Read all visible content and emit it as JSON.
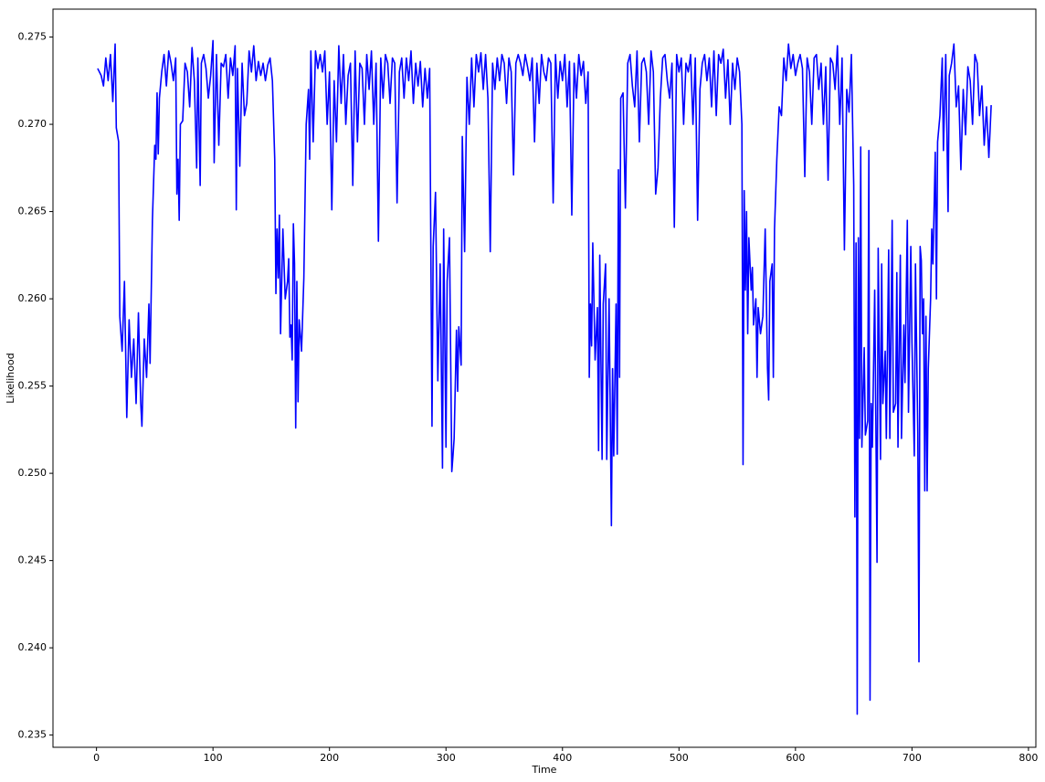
{
  "chart_data": {
    "type": "line",
    "x_label": "Time",
    "y_label": "Likelihood",
    "color": "#0000ff",
    "xlim": [
      -37.35,
      806.35
    ],
    "xticks": [
      0,
      100,
      200,
      300,
      400,
      500,
      600,
      700,
      800
    ],
    "ylim": [
      0.2343,
      0.2766
    ],
    "yticks": [
      0.235,
      {
        "value": 0.24,
        "label": "0.240"
      },
      0.245,
      {
        "value": 0.25,
        "label": "0.250"
      },
      0.255,
      {
        "value": 0.26,
        "label": "0.260"
      },
      0.265,
      {
        "value": 0.27,
        "label": "0.270"
      },
      0.275
    ],
    "x": [
      1,
      4,
      6,
      8,
      10,
      12,
      14,
      16,
      17,
      19,
      20,
      22,
      24,
      26,
      28,
      30,
      32,
      34,
      36,
      38,
      39,
      41,
      43,
      45,
      46,
      48,
      50,
      51,
      52,
      53,
      54,
      56,
      58,
      60,
      62,
      64,
      66,
      68,
      69,
      70,
      71,
      72,
      74,
      76,
      78,
      80,
      82,
      84,
      86,
      87,
      89,
      90,
      92,
      94,
      96,
      98,
      100,
      101,
      103,
      105,
      107,
      109,
      111,
      113,
      115,
      117,
      119,
      120,
      121,
      123,
      125,
      127,
      129,
      131,
      133,
      135,
      137,
      139,
      141,
      143,
      145,
      147,
      149,
      151,
      153,
      154,
      155,
      156,
      157,
      158,
      160,
      162,
      164,
      165,
      166,
      167,
      168,
      169,
      170,
      171,
      172,
      173,
      174,
      176,
      178,
      180,
      182,
      183,
      184,
      186,
      188,
      190,
      192,
      194,
      196,
      198,
      200,
      202,
      204,
      206,
      208,
      210,
      212,
      214,
      216,
      218,
      220,
      222,
      224,
      226,
      228,
      230,
      232,
      234,
      236,
      238,
      240,
      242,
      244,
      246,
      248,
      250,
      252,
      254,
      256,
      258,
      260,
      262,
      264,
      266,
      268,
      270,
      272,
      274,
      276,
      278,
      280,
      282,
      284,
      286,
      288,
      289,
      291,
      293,
      295,
      297,
      298,
      300,
      301,
      303,
      305,
      306,
      307,
      309,
      310,
      311,
      313,
      314,
      316,
      318,
      320,
      322,
      324,
      326,
      328,
      330,
      332,
      334,
      336,
      338,
      340,
      342,
      344,
      346,
      348,
      350,
      352,
      354,
      356,
      358,
      360,
      362,
      364,
      366,
      368,
      370,
      372,
      374,
      376,
      378,
      380,
      382,
      384,
      386,
      388,
      390,
      392,
      394,
      396,
      398,
      400,
      402,
      404,
      406,
      408,
      410,
      412,
      414,
      416,
      418,
      420,
      422,
      423,
      424,
      425,
      426,
      428,
      430,
      431,
      432,
      434,
      435,
      437,
      438,
      440,
      442,
      443,
      444,
      446,
      447,
      448,
      449,
      450,
      452,
      454,
      456,
      458,
      460,
      462,
      464,
      466,
      468,
      470,
      472,
      474,
      476,
      478,
      480,
      482,
      484,
      486,
      488,
      490,
      492,
      494,
      496,
      498,
      500,
      502,
      504,
      506,
      508,
      510,
      512,
      514,
      516,
      518,
      520,
      522,
      524,
      526,
      528,
      530,
      532,
      534,
      536,
      538,
      540,
      542,
      544,
      546,
      548,
      550,
      552,
      554,
      555,
      556,
      557,
      558,
      559,
      560,
      562,
      563,
      564,
      566,
      567,
      568,
      570,
      572,
      574,
      576,
      577,
      578,
      580,
      581,
      582,
      584,
      586,
      588,
      590,
      592,
      594,
      596,
      598,
      600,
      602,
      604,
      606,
      608,
      610,
      612,
      614,
      616,
      618,
      620,
      622,
      624,
      626,
      628,
      630,
      632,
      634,
      636,
      638,
      640,
      642,
      644,
      646,
      648,
      650,
      651,
      652,
      653,
      654,
      655,
      656,
      657,
      659,
      660,
      662,
      663,
      664,
      665,
      666,
      668,
      669,
      670,
      671,
      673,
      674,
      675,
      677,
      678,
      680,
      681,
      683,
      684,
      686,
      687,
      688,
      690,
      691,
      693,
      694,
      696,
      697,
      699,
      700,
      702,
      703,
      705,
      706,
      707,
      708,
      709,
      710,
      711,
      712,
      713,
      714,
      716,
      717,
      718,
      720,
      721,
      722,
      724,
      726,
      727,
      729,
      731,
      732,
      734,
      736,
      738,
      740,
      742,
      744,
      746,
      748,
      750,
      752,
      754,
      756,
      758,
      760,
      762,
      764,
      766,
      768
    ],
    "values": [
      0.2732,
      0.2728,
      0.2722,
      0.2738,
      0.2725,
      0.274,
      0.2713,
      0.2746,
      0.2698,
      0.269,
      0.259,
      0.257,
      0.261,
      0.2532,
      0.2588,
      0.2555,
      0.2577,
      0.254,
      0.2592,
      0.254,
      0.2527,
      0.2577,
      0.2555,
      0.2597,
      0.2563,
      0.2645,
      0.2688,
      0.268,
      0.2718,
      0.2683,
      0.2715,
      0.273,
      0.274,
      0.2722,
      0.2742,
      0.2735,
      0.2725,
      0.2738,
      0.266,
      0.268,
      0.2645,
      0.27,
      0.2702,
      0.2735,
      0.273,
      0.271,
      0.2744,
      0.2725,
      0.2675,
      0.2738,
      0.2665,
      0.2735,
      0.274,
      0.2732,
      0.2715,
      0.2728,
      0.2748,
      0.2678,
      0.274,
      0.2688,
      0.2735,
      0.2733,
      0.274,
      0.2715,
      0.2738,
      0.2728,
      0.2745,
      0.2651,
      0.2732,
      0.2676,
      0.2735,
      0.2705,
      0.2712,
      0.2742,
      0.273,
      0.2745,
      0.2725,
      0.2736,
      0.2728,
      0.2735,
      0.2725,
      0.2734,
      0.2738,
      0.2725,
      0.268,
      0.2603,
      0.264,
      0.2612,
      0.2648,
      0.258,
      0.264,
      0.26,
      0.261,
      0.2623,
      0.2578,
      0.2585,
      0.2565,
      0.2643,
      0.262,
      0.2526,
      0.261,
      0.2541,
      0.2588,
      0.257,
      0.2612,
      0.27,
      0.272,
      0.268,
      0.2742,
      0.269,
      0.2742,
      0.2732,
      0.274,
      0.273,
      0.2742,
      0.27,
      0.273,
      0.2651,
      0.2725,
      0.269,
      0.2745,
      0.2712,
      0.274,
      0.27,
      0.2728,
      0.2735,
      0.2665,
      0.2742,
      0.269,
      0.2735,
      0.2732,
      0.27,
      0.274,
      0.272,
      0.2742,
      0.27,
      0.2735,
      0.2633,
      0.2738,
      0.2715,
      0.274,
      0.2735,
      0.2712,
      0.2738,
      0.2735,
      0.2655,
      0.273,
      0.2738,
      0.2715,
      0.2738,
      0.2725,
      0.2742,
      0.2712,
      0.2735,
      0.2722,
      0.2736,
      0.271,
      0.2732,
      0.2715,
      0.2732,
      0.2527,
      0.263,
      0.2661,
      0.2553,
      0.262,
      0.2503,
      0.264,
      0.2515,
      0.261,
      0.2635,
      0.2501,
      0.251,
      0.252,
      0.2582,
      0.2547,
      0.2584,
      0.2562,
      0.2693,
      0.2627,
      0.2727,
      0.27,
      0.2738,
      0.271,
      0.274,
      0.273,
      0.2741,
      0.272,
      0.274,
      0.2715,
      0.2627,
      0.2735,
      0.272,
      0.2738,
      0.2725,
      0.274,
      0.2735,
      0.2712,
      0.2738,
      0.273,
      0.2671,
      0.2735,
      0.274,
      0.2735,
      0.2728,
      0.274,
      0.2733,
      0.2725,
      0.2738,
      0.269,
      0.2735,
      0.2712,
      0.274,
      0.273,
      0.2725,
      0.2738,
      0.2735,
      0.2655,
      0.274,
      0.2715,
      0.2736,
      0.2725,
      0.274,
      0.271,
      0.2736,
      0.2648,
      0.2735,
      0.2715,
      0.274,
      0.2728,
      0.2736,
      0.2712,
      0.273,
      0.2555,
      0.2597,
      0.2573,
      0.2632,
      0.2565,
      0.2595,
      0.2513,
      0.2625,
      0.2508,
      0.2597,
      0.262,
      0.2508,
      0.26,
      0.247,
      0.256,
      0.251,
      0.2597,
      0.2511,
      0.2674,
      0.2555,
      0.2715,
      0.2718,
      0.2652,
      0.2735,
      0.274,
      0.2722,
      0.271,
      0.2742,
      0.269,
      0.2735,
      0.2738,
      0.273,
      0.27,
      0.2742,
      0.273,
      0.266,
      0.2675,
      0.2715,
      0.2738,
      0.274,
      0.2725,
      0.2715,
      0.2735,
      0.2641,
      0.274,
      0.273,
      0.2738,
      0.27,
      0.2735,
      0.273,
      0.274,
      0.27,
      0.2738,
      0.2645,
      0.272,
      0.2735,
      0.274,
      0.2725,
      0.2738,
      0.271,
      0.2742,
      0.2705,
      0.274,
      0.2735,
      0.2743,
      0.2715,
      0.2737,
      0.27,
      0.2735,
      0.272,
      0.2738,
      0.273,
      0.27,
      0.2505,
      0.2662,
      0.2605,
      0.265,
      0.258,
      0.2635,
      0.2605,
      0.2618,
      0.2585,
      0.26,
      0.2555,
      0.2595,
      0.258,
      0.259,
      0.264,
      0.256,
      0.2542,
      0.261,
      0.262,
      0.2555,
      0.264,
      0.268,
      0.271,
      0.2705,
      0.2738,
      0.2725,
      0.2746,
      0.2732,
      0.274,
      0.2728,
      0.2735,
      0.274,
      0.2732,
      0.267,
      0.2738,
      0.273,
      0.27,
      0.2738,
      0.274,
      0.272,
      0.2735,
      0.27,
      0.2733,
      0.2668,
      0.2738,
      0.2735,
      0.272,
      0.2745,
      0.27,
      0.2738,
      0.2628,
      0.272,
      0.2707,
      0.274,
      0.2665,
      0.2475,
      0.2632,
      0.2362,
      0.2635,
      0.252,
      0.2687,
      0.2515,
      0.2572,
      0.2522,
      0.253,
      0.2685,
      0.237,
      0.254,
      0.2515,
      0.2605,
      0.253,
      0.2449,
      0.2629,
      0.2508,
      0.262,
      0.254,
      0.257,
      0.252,
      0.2628,
      0.252,
      0.2645,
      0.2535,
      0.254,
      0.2615,
      0.2515,
      0.2625,
      0.252,
      0.2585,
      0.2552,
      0.2645,
      0.2535,
      0.263,
      0.2575,
      0.251,
      0.262,
      0.2523,
      0.2392,
      0.263,
      0.2622,
      0.258,
      0.26,
      0.249,
      0.259,
      0.249,
      0.256,
      0.26,
      0.264,
      0.262,
      0.2684,
      0.26,
      0.269,
      0.2705,
      0.2738,
      0.2685,
      0.274,
      0.265,
      0.2728,
      0.2735,
      0.2746,
      0.271,
      0.2722,
      0.2674,
      0.272,
      0.2694,
      0.2733,
      0.2725,
      0.27,
      0.274,
      0.2735,
      0.2705,
      0.2722,
      0.2688,
      0.271,
      0.2681,
      0.2711
    ]
  }
}
